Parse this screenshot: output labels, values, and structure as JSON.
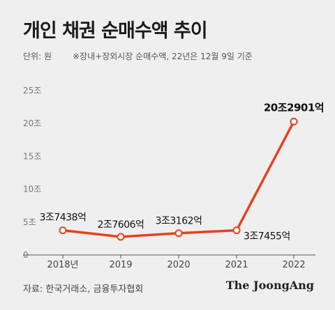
{
  "header": {
    "title": "개인 채권 순매수액 추이",
    "unit": "단위: 원",
    "note": "※장내+장외시장 순매수액, 22년은 12월 9일 기준"
  },
  "footer": {
    "source": "자료: 한국거래소, 금융투자협회",
    "logo": "The JoongAng"
  },
  "colors": {
    "line": "#e8401c",
    "axis": "#555555",
    "background": "#efefef"
  },
  "chart_data": {
    "type": "line",
    "title": "개인 채권 순매수액 추이",
    "ylabel": "",
    "xlabel": "",
    "categories": [
      "2018년",
      "2019",
      "2020",
      "2021",
      "2022"
    ],
    "values": [
      3.7438,
      2.7606,
      3.3162,
      3.7455,
      20.2901
    ],
    "data_labels": [
      "3조7438억",
      "2조7606억",
      "3조3162억",
      "3조7455억",
      "20조2901억"
    ],
    "y_ticks": [
      0,
      5,
      10,
      15,
      20,
      25
    ],
    "y_tick_labels": [
      "0",
      "5조",
      "10조",
      "15조",
      "20조",
      "25조"
    ],
    "ylim": [
      0,
      25
    ],
    "grid": false
  }
}
